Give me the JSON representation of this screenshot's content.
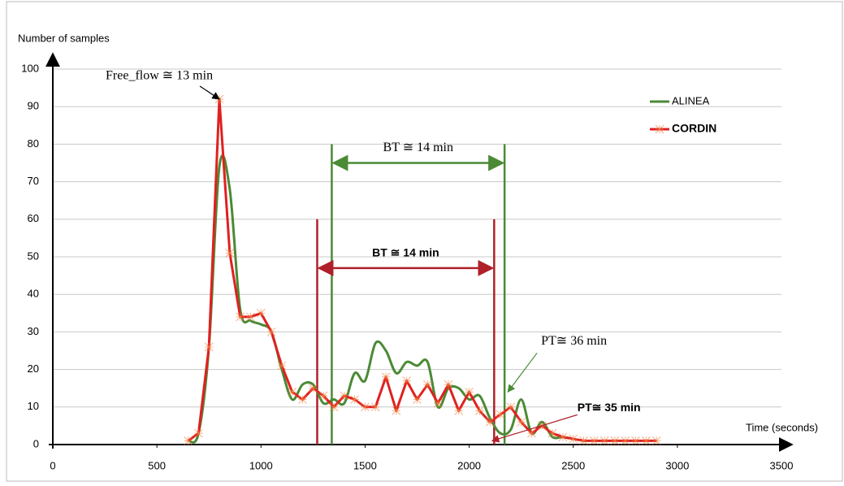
{
  "chart_data": {
    "type": "line",
    "xlabel": "Time (seconds)",
    "ylabel": "Number of samples",
    "x": [
      650,
      700,
      750,
      800,
      850,
      900,
      950,
      1000,
      1050,
      1100,
      1150,
      1200,
      1250,
      1300,
      1350,
      1400,
      1450,
      1500,
      1550,
      1600,
      1650,
      1700,
      1750,
      1800,
      1850,
      1900,
      1950,
      2000,
      2050,
      2100,
      2150,
      2200,
      2250,
      2300,
      2350,
      2400,
      2450,
      2500,
      2550,
      2600,
      2650,
      2700,
      2750,
      2800,
      2850,
      2900
    ],
    "series": [
      {
        "name": "ALINEA",
        "color": "#4a8a35",
        "smooth": true,
        "markers": false,
        "values": [
          1,
          3,
          26,
          74,
          68,
          36,
          33,
          32,
          30,
          20,
          12,
          16,
          16,
          11,
          12,
          11,
          19,
          17,
          27,
          25,
          19,
          22,
          21,
          22,
          10,
          15,
          15,
          12,
          13,
          7,
          3,
          4,
          12,
          3,
          6,
          2,
          2,
          1.5,
          null,
          null,
          null,
          null,
          null,
          null,
          null,
          null
        ]
      },
      {
        "name": "CORDIN",
        "color": "#e02020",
        "smooth": false,
        "markers": true,
        "values": [
          1,
          3,
          26,
          92,
          51,
          34,
          34,
          35,
          30,
          21,
          14,
          12,
          15,
          13,
          10,
          13,
          12,
          10,
          10,
          18,
          9,
          17,
          12,
          16,
          11,
          16,
          9,
          14,
          9,
          6,
          8,
          10,
          6,
          3,
          5,
          3,
          2,
          1.5,
          1,
          1,
          1,
          1,
          1,
          1,
          1,
          1
        ]
      }
    ],
    "xlim": [
      0,
      3500
    ],
    "ylim": [
      0,
      100
    ],
    "xticks": [
      0,
      500,
      1000,
      1500,
      2000,
      2500,
      3000,
      3500
    ],
    "yticks": [
      0,
      10,
      20,
      30,
      40,
      50,
      60,
      70,
      80,
      90,
      100
    ],
    "grid": true,
    "legend": "upper right",
    "spans": [
      {
        "label": "BT ≅ 14 min",
        "color": "#4a8a35",
        "x": [
          1340,
          2170
        ],
        "y": 75,
        "top": 80
      },
      {
        "label": "BT  ≅ 14 min",
        "color": "#b0202a",
        "x": [
          1270,
          2120
        ],
        "y": 47,
        "top": 60
      }
    ],
    "annotations": [
      {
        "text": "Free_flow ≅ 13 min",
        "color": "#000000",
        "xy": [
          800,
          92
        ]
      },
      {
        "text": "PT≅ 36 min",
        "color": "#4a8a35",
        "xy": [
          2170,
          14
        ]
      },
      {
        "text": "PT≅ 35 min",
        "color": "#b0202a",
        "xy": [
          2110,
          1
        ]
      }
    ]
  }
}
